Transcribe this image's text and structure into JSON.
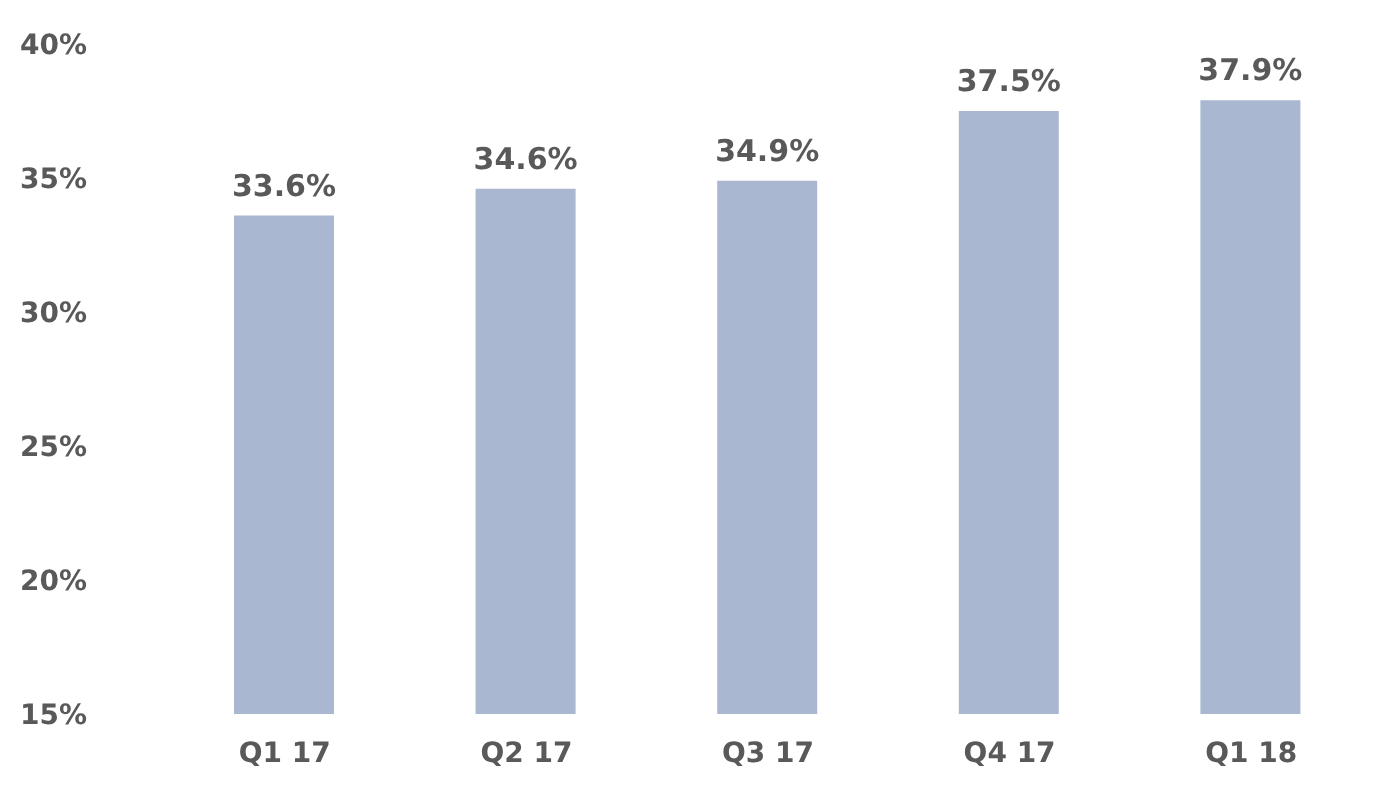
{
  "chart_data": {
    "type": "bar",
    "categories": [
      "Q1 17",
      "Q2 17",
      "Q3 17",
      "Q4 17",
      "Q1 18"
    ],
    "values": [
      33.6,
      34.6,
      34.9,
      37.5,
      37.9
    ],
    "value_labels": [
      "33.6%",
      "34.6%",
      "34.9%",
      "37.5%",
      "37.9%"
    ],
    "color": "#a9b8d0",
    "ylim": [
      15,
      40
    ],
    "yticks": [
      {
        "value": 15,
        "label": "15%"
      },
      {
        "value": 20,
        "label": "20%"
      },
      {
        "value": 25,
        "label": "25%"
      },
      {
        "value": 30,
        "label": "30%"
      },
      {
        "value": 35,
        "label": "35%"
      },
      {
        "value": 40,
        "label": "40%"
      }
    ],
    "grid": false,
    "legend": false
  }
}
